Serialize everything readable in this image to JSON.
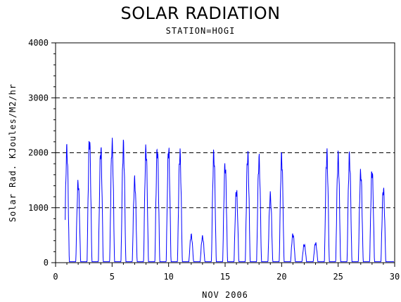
{
  "chart_data": {
    "type": "line",
    "title": "SOLAR RADIATION",
    "subtitle": "STATION=HOGI",
    "xlabel": "NOV 2006",
    "ylabel": "Solar Rad. KJoules/M2/hr",
    "xlim": [
      0,
      30
    ],
    "ylim": [
      0,
      4000
    ],
    "x_ticks": [
      0,
      5,
      10,
      15,
      20,
      25,
      30
    ],
    "y_ticks": [
      0,
      1000,
      2000,
      3000,
      4000
    ],
    "y_grid_dashed": [
      1000,
      2000,
      3000,
      4000
    ],
    "series_color": "#0000ff",
    "series": [
      {
        "daily_peaks": [
          {
            "day": 1,
            "peak": 2200
          },
          {
            "day": 2,
            "peak": 1550
          },
          {
            "day": 3,
            "peak": 2380
          },
          {
            "day": 4,
            "peak": 2200
          },
          {
            "day": 5,
            "peak": 2300
          },
          {
            "day": 6,
            "peak": 2260
          },
          {
            "day": 7,
            "peak": 1600
          },
          {
            "day": 8,
            "peak": 2200
          },
          {
            "day": 9,
            "peak": 2200
          },
          {
            "day": 10,
            "peak": 2200
          },
          {
            "day": 11,
            "peak": 2120
          },
          {
            "day": 12,
            "peak": 530
          },
          {
            "day": 13,
            "peak": 500
          },
          {
            "day": 14,
            "peak": 2100
          },
          {
            "day": 15,
            "peak": 1900
          },
          {
            "day": 16,
            "peak": 1400
          },
          {
            "day": 17,
            "peak": 2100
          },
          {
            "day": 18,
            "peak": 2000
          },
          {
            "day": 19,
            "peak": 1300
          },
          {
            "day": 20,
            "peak": 2050
          },
          {
            "day": 21,
            "peak": 550
          },
          {
            "day": 22,
            "peak": 350
          },
          {
            "day": 23,
            "peak": 380
          },
          {
            "day": 24,
            "peak": 2100
          },
          {
            "day": 25,
            "peak": 2050
          },
          {
            "day": 26,
            "peak": 2050
          },
          {
            "day": 27,
            "peak": 1750
          },
          {
            "day": 28,
            "peak": 1780
          },
          {
            "day": 29,
            "peak": 1430
          }
        ]
      }
    ]
  }
}
